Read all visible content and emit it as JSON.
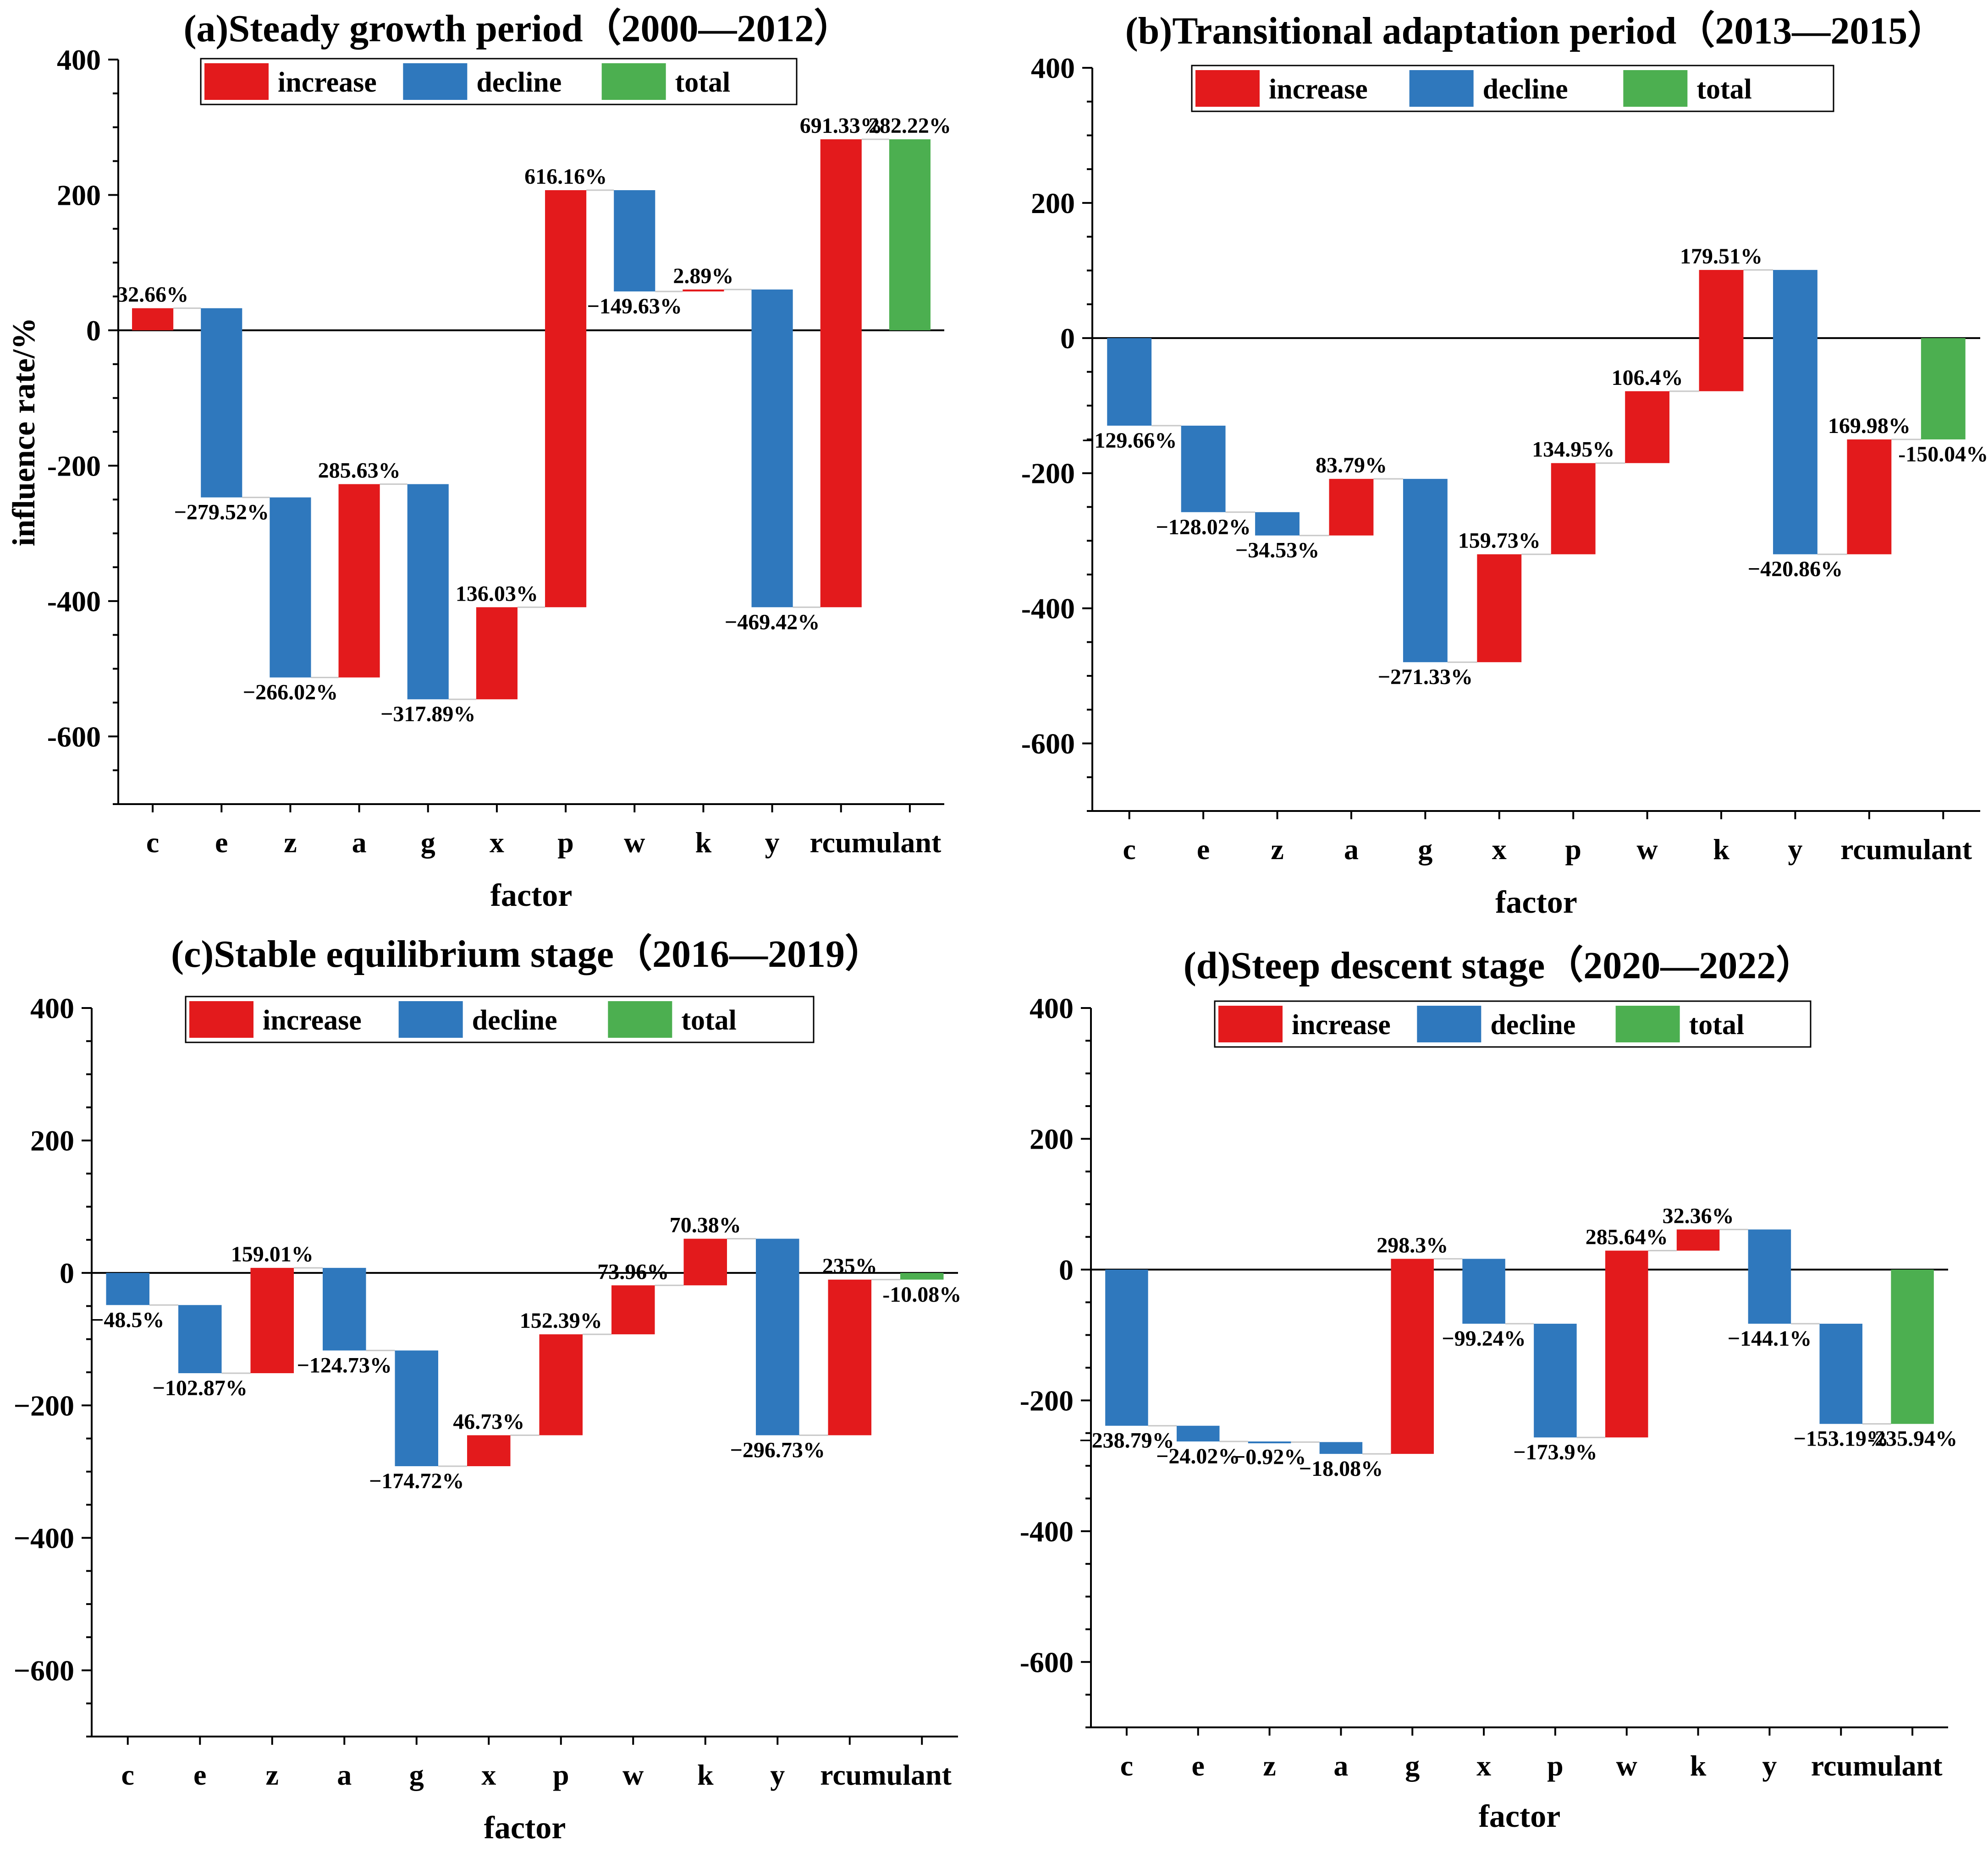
{
  "colors": {
    "increase": "#e31a1c",
    "decline": "#2f78bd",
    "total": "#4caf50"
  },
  "legend": [
    "increase",
    "decline",
    "total"
  ],
  "chart_data": [
    {
      "type": "bar",
      "title": "(a)Steady growth period（2000—2012）",
      "xlabel": "factor",
      "ylabel": "influence rate/%",
      "ylim": [
        -700,
        400
      ],
      "yticks": [
        400,
        200,
        0,
        -200,
        -400,
        -600
      ],
      "ytick_labels": [
        "400",
        "200",
        "0",
        "-200",
        "-400",
        "-600"
      ],
      "categories": [
        "c",
        "e",
        "z",
        "a",
        "g",
        "x",
        "p",
        "w",
        "k",
        "y",
        "rcumulant"
      ],
      "bars": [
        {
          "cat": "c",
          "kind": "increase",
          "from": 0,
          "to": 32.66,
          "label": "32.66%"
        },
        {
          "cat": "e",
          "kind": "decline",
          "from": 32.66,
          "to": -246.86,
          "label": "−279.52%"
        },
        {
          "cat": "z",
          "kind": "decline",
          "from": -246.86,
          "to": -512.88,
          "label": "−266.02%"
        },
        {
          "cat": "a",
          "kind": "increase",
          "from": -512.88,
          "to": -227.25,
          "label": "285.63%"
        },
        {
          "cat": "g",
          "kind": "decline",
          "from": -227.25,
          "to": -545.14,
          "label": "−317.89%"
        },
        {
          "cat": "x",
          "kind": "increase",
          "from": -545.14,
          "to": -409.11,
          "label": "136.03%"
        },
        {
          "cat": "p",
          "kind": "increase",
          "from": -409.11,
          "to": 207.05,
          "label": "616.16%"
        },
        {
          "cat": "w",
          "kind": "decline",
          "from": 207.05,
          "to": 57.42,
          "label": "−149.63%"
        },
        {
          "cat": "k",
          "kind": "increase",
          "from": 57.42,
          "to": 60.31,
          "label": "2.89%"
        },
        {
          "cat": "y",
          "kind": "decline",
          "from": 60.31,
          "to": -409.11,
          "label": "−469.42%"
        },
        {
          "cat": "rcumulant",
          "kind": "increase",
          "from": -409.11,
          "to": 282.22,
          "label": "691.33%"
        },
        {
          "cat": "total",
          "kind": "total",
          "from": 0,
          "to": 282.22,
          "label": "282.22%"
        }
      ]
    },
    {
      "type": "bar",
      "title": "(b)Transitional adaptation period（2013—2015）",
      "xlabel": "factor",
      "ylabel": "",
      "ylim": [
        -700,
        400
      ],
      "yticks": [
        400,
        200,
        0,
        -200,
        -400,
        -600
      ],
      "ytick_labels": [
        "400",
        "200",
        "0",
        "-200",
        "-400",
        "-600"
      ],
      "categories": [
        "c",
        "e",
        "z",
        "a",
        "g",
        "x",
        "p",
        "w",
        "k",
        "y",
        "rcumulant"
      ],
      "bars": [
        {
          "cat": "c",
          "kind": "decline",
          "from": 0,
          "to": -129.66,
          "label": "−129.66%"
        },
        {
          "cat": "e",
          "kind": "decline",
          "from": -129.66,
          "to": -257.68,
          "label": "−128.02%"
        },
        {
          "cat": "z",
          "kind": "decline",
          "from": -257.68,
          "to": -292.21,
          "label": "−34.53%"
        },
        {
          "cat": "a",
          "kind": "increase",
          "from": -292.21,
          "to": -208.42,
          "label": "83.79%"
        },
        {
          "cat": "g",
          "kind": "decline",
          "from": -208.42,
          "to": -479.75,
          "label": "−271.33%"
        },
        {
          "cat": "x",
          "kind": "increase",
          "from": -479.75,
          "to": -320.02,
          "label": "159.73%"
        },
        {
          "cat": "p",
          "kind": "increase",
          "from": -320.02,
          "to": -185.07,
          "label": "134.95%"
        },
        {
          "cat": "w",
          "kind": "increase",
          "from": -185.07,
          "to": -78.67,
          "label": "106.4%"
        },
        {
          "cat": "k",
          "kind": "increase",
          "from": -78.67,
          "to": 100.84,
          "label": "179.51%"
        },
        {
          "cat": "y",
          "kind": "decline",
          "from": 100.84,
          "to": -320.02,
          "label": "−420.86%"
        },
        {
          "cat": "rcumulant",
          "kind": "increase",
          "from": -320.02,
          "to": -150.04,
          "label": "169.98%"
        },
        {
          "cat": "total",
          "kind": "total",
          "from": 0,
          "to": -150.04,
          "label": "-150.04%"
        }
      ]
    },
    {
      "type": "bar",
      "title": "(c)Stable equilibrium stage（2016—2019）",
      "xlabel": "factor",
      "ylabel": "",
      "ylim": [
        -700,
        400
      ],
      "yticks": [
        400,
        200,
        0,
        -200,
        -400,
        -600
      ],
      "ytick_labels": [
        "400",
        "200",
        "0",
        "−200",
        "−400",
        "−600"
      ],
      "categories": [
        "c",
        "e",
        "z",
        "a",
        "g",
        "x",
        "p",
        "w",
        "k",
        "y",
        "rcumulant"
      ],
      "bars": [
        {
          "cat": "c",
          "kind": "decline",
          "from": 0,
          "to": -48.5,
          "label": "−48.5%"
        },
        {
          "cat": "e",
          "kind": "decline",
          "from": -48.5,
          "to": -151.37,
          "label": "−102.87%"
        },
        {
          "cat": "z",
          "kind": "increase",
          "from": -151.37,
          "to": 7.64,
          "label": "159.01%"
        },
        {
          "cat": "a",
          "kind": "decline",
          "from": 7.64,
          "to": -117.09,
          "label": "−124.73%"
        },
        {
          "cat": "g",
          "kind": "decline",
          "from": -117.09,
          "to": -291.81,
          "label": "−174.72%"
        },
        {
          "cat": "x",
          "kind": "increase",
          "from": -291.81,
          "to": -245.08,
          "label": "46.73%"
        },
        {
          "cat": "p",
          "kind": "increase",
          "from": -245.08,
          "to": -92.69,
          "label": "152.39%"
        },
        {
          "cat": "w",
          "kind": "increase",
          "from": -92.69,
          "to": -18.73,
          "label": "73.96%"
        },
        {
          "cat": "k",
          "kind": "increase",
          "from": -18.73,
          "to": 51.65,
          "label": "70.38%"
        },
        {
          "cat": "y",
          "kind": "decline",
          "from": 51.65,
          "to": -245.08,
          "label": "−296.73%"
        },
        {
          "cat": "rcumulant",
          "kind": "increase",
          "from": -245.08,
          "to": -10.08,
          "label": "235%"
        },
        {
          "cat": "total",
          "kind": "total",
          "from": 0,
          "to": -10.08,
          "label": "-10.08%"
        }
      ]
    },
    {
      "type": "bar",
      "title": "(d)Steep descent stage（2020—2022）",
      "xlabel": "factor",
      "ylabel": "",
      "ylim": [
        -700,
        400
      ],
      "yticks": [
        400,
        200,
        0,
        -200,
        -400,
        -600
      ],
      "ytick_labels": [
        "400",
        "200",
        "0",
        "-200",
        "-400",
        "-600"
      ],
      "categories": [
        "c",
        "e",
        "z",
        "a",
        "g",
        "x",
        "p",
        "w",
        "k",
        "y",
        "rcumulant"
      ],
      "bars": [
        {
          "cat": "c",
          "kind": "decline",
          "from": 0,
          "to": -238.79,
          "label": "−238.79%"
        },
        {
          "cat": "e",
          "kind": "decline",
          "from": -238.79,
          "to": -262.81,
          "label": "−24.02%"
        },
        {
          "cat": "z",
          "kind": "decline",
          "from": -262.81,
          "to": -263.73,
          "label": "−0.92%"
        },
        {
          "cat": "a",
          "kind": "decline",
          "from": -263.73,
          "to": -281.81,
          "label": "−18.08%"
        },
        {
          "cat": "g",
          "kind": "increase",
          "from": -281.81,
          "to": 16.49,
          "label": "298.3%"
        },
        {
          "cat": "x",
          "kind": "decline",
          "from": 16.49,
          "to": -82.75,
          "label": "−99.24%"
        },
        {
          "cat": "p",
          "kind": "decline",
          "from": -82.75,
          "to": -256.65,
          "label": "−173.9%"
        },
        {
          "cat": "w",
          "kind": "increase",
          "from": -256.65,
          "to": 28.99,
          "label": "285.64%"
        },
        {
          "cat": "k",
          "kind": "increase",
          "from": 28.99,
          "to": 61.35,
          "label": "32.36%"
        },
        {
          "cat": "y",
          "kind": "decline",
          "from": 61.35,
          "to": -82.75,
          "label": "−144.1%"
        },
        {
          "cat": "rcumulant",
          "kind": "decline",
          "from": -82.75,
          "to": -235.94,
          "label": "−153.19%"
        },
        {
          "cat": "total",
          "kind": "total",
          "from": 0,
          "to": -235.94,
          "label": "-235.94%"
        }
      ]
    }
  ]
}
